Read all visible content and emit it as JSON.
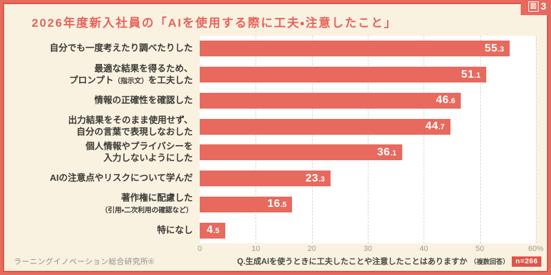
{
  "figure_badge": {
    "box_char": "図",
    "number": "3"
  },
  "title": "2026年度新入社員の「AIを使用する際に工夫・注意したこと」",
  "chart_data": {
    "type": "bar",
    "orientation": "horizontal",
    "title": "2026年度新入社員の「AIを使用する際に工夫・注意したこと」",
    "unit": "%",
    "xlim": [
      0,
      60
    ],
    "x_ticks": [
      "0",
      "10",
      "20",
      "30",
      "40",
      "50",
      "60%"
    ],
    "grid": "dashed-vertical",
    "legend": "none",
    "bar_color": "#E8695E",
    "plot_background": "#FFFFFF",
    "categories": [
      "自分でも一度考えたり調べたりした",
      "最適な結果を得るため、プロンプト（指示文）を工夫した",
      "情報の正確性を確認した",
      "出力結果をそのまま使用せず、自分の言葉で表現しなおした",
      "個人情報やプライバシーを入力しないようにした",
      "AIの注意点やリスクについて学んだ",
      "著作権に配慮した（引用・二次利用の確認など）",
      "特になし"
    ],
    "values": [
      55.3,
      51.1,
      46.6,
      44.7,
      36.1,
      23.3,
      16.5,
      4.5
    ],
    "items": [
      {
        "label_lines": [
          [
            {
              "t": "自分でも一度考えたり調べたりした",
              "small": false
            }
          ]
        ],
        "value": "55.3"
      },
      {
        "label_lines": [
          [
            {
              "t": "最適な結果を得るため、",
              "small": false
            }
          ],
          [
            {
              "t": "プロンプト",
              "small": false
            },
            {
              "t": "（指示文）",
              "small": true
            },
            {
              "t": "を工夫した",
              "small": false
            }
          ]
        ],
        "value": "51.1"
      },
      {
        "label_lines": [
          [
            {
              "t": "情報の正確性を確認した",
              "small": false
            }
          ]
        ],
        "value": "46.6"
      },
      {
        "label_lines": [
          [
            {
              "t": "出力結果をそのまま使用せず、",
              "small": false
            }
          ],
          [
            {
              "t": "自分の言葉で表現しなおした",
              "small": false
            }
          ]
        ],
        "value": "44.7"
      },
      {
        "label_lines": [
          [
            {
              "t": "個人情報やプライバシーを",
              "small": false
            }
          ],
          [
            {
              "t": "入力しないようにした",
              "small": false
            }
          ]
        ],
        "value": "36.1"
      },
      {
        "label_lines": [
          [
            {
              "t": "AIの注意点やリスクについて学んだ",
              "small": false
            }
          ]
        ],
        "value": "23.3"
      },
      {
        "label_lines": [
          [
            {
              "t": "著作権に配慮した",
              "small": false
            },
            {
              "t": "（引用・二次利用の確認など）",
              "small": true
            }
          ]
        ],
        "value": "16.5"
      },
      {
        "label_lines": [
          [
            {
              "t": "特になし",
              "small": false
            }
          ]
        ],
        "value": "4.5"
      }
    ]
  },
  "footer": {
    "source": "ラーニングイノベーション総合研究所®",
    "question": "Q.生成AIを使うときに工夫したことや注意したことはありますか",
    "question_note": "（複数回答）",
    "sample_badge": "n=266"
  },
  "colors": {
    "accent": "#E8695E",
    "frame_inner_line": "#D6574D",
    "background": "#FAF2E0",
    "plot_background": "#FFFFFF",
    "badge_background": "#E0544A",
    "value_text": "#FFFFFF",
    "label_text": "#3A3A36",
    "tick_text": "#9C998A"
  }
}
